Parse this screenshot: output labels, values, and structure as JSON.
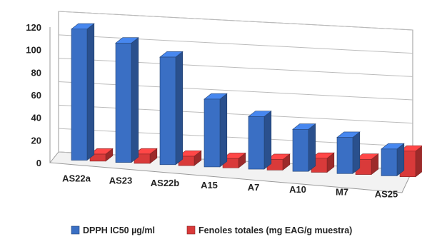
{
  "chart_data": {
    "type": "bar",
    "categories": [
      "AS22a",
      "AS23",
      "AS22b",
      "A15",
      "A7",
      "A10",
      "M7",
      "AS25"
    ],
    "series": [
      {
        "name": "DPPH IC50 µg/ml",
        "color": "#3a6fc4",
        "values": [
          112,
          102,
          92,
          58,
          45,
          36,
          31,
          23
        ]
      },
      {
        "name": "Fenoles totales (mg EAG/g muestra)",
        "color": "#d93a3a",
        "values": [
          6,
          8,
          8,
          8,
          9,
          12,
          13,
          22
        ]
      }
    ],
    "y_ticks": [
      0,
      20,
      40,
      60,
      80,
      100,
      120
    ],
    "ylim": [
      0,
      120
    ],
    "legend_position": "bottom",
    "style": "3d-clustered-column"
  }
}
